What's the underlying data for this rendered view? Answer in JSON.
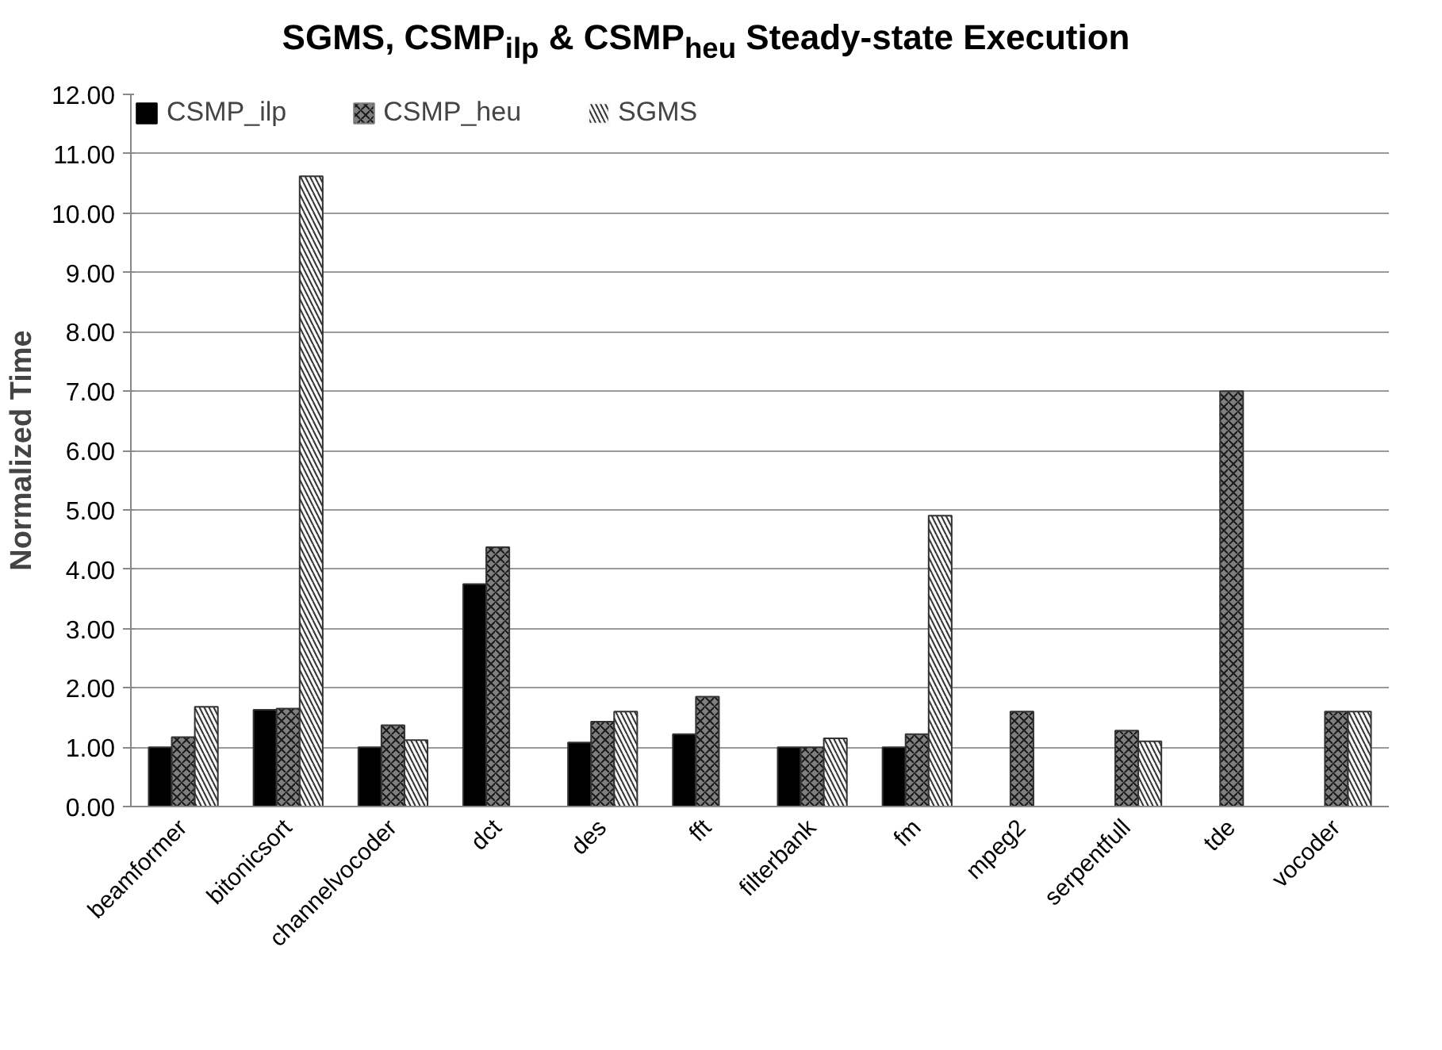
{
  "chart_data": {
    "type": "bar",
    "title": "SGMS, CSMP$_{ilp}$ & CSMP$_{heu}$ Steady-state Execution",
    "ylabel": "Normalized Time",
    "categories": [
      "beamformer",
      "bitonicsort",
      "channelvocoder",
      "dct",
      "des",
      "fft",
      "filterbank",
      "fm",
      "mpeg2",
      "serpentfull",
      "tde",
      "vocoder"
    ],
    "series": [
      {
        "name": "CSMP_ilp",
        "color": "#000000",
        "values": [
          1.0,
          1.63,
          1.0,
          3.75,
          1.08,
          1.22,
          1.0,
          1.0,
          null,
          null,
          null,
          null
        ]
      },
      {
        "name": "CSMP_heu",
        "color": "#808080",
        "values": [
          1.17,
          1.65,
          1.37,
          4.37,
          1.43,
          1.85,
          1.0,
          1.22,
          1.6,
          1.28,
          7.0,
          1.6
        ]
      },
      {
        "name": "SGMS",
        "color": "#f8f8f8",
        "values": [
          1.68,
          10.62,
          1.12,
          null,
          1.6,
          null,
          1.15,
          4.9,
          null,
          1.1,
          null,
          1.6
        ]
      }
    ],
    "ylim": [
      0,
      12
    ],
    "yticks": [
      {
        "value": 0,
        "label": "0.00"
      },
      {
        "value": 1,
        "label": "1.00"
      },
      {
        "value": 2,
        "label": "2.00"
      },
      {
        "value": 3,
        "label": "3.00"
      },
      {
        "value": 4,
        "label": "4.00"
      },
      {
        "value": 5,
        "label": "5.00"
      },
      {
        "value": 6,
        "label": "6.00"
      },
      {
        "value": 7,
        "label": "7.00"
      },
      {
        "value": 8,
        "label": "8.00"
      },
      {
        "value": 9,
        "label": "9.00"
      },
      {
        "value": 10,
        "label": "10.00"
      },
      {
        "value": 11,
        "label": "11.00"
      },
      {
        "value": 12,
        "label": "12.00"
      }
    ],
    "grid": "y",
    "legend": "top"
  }
}
